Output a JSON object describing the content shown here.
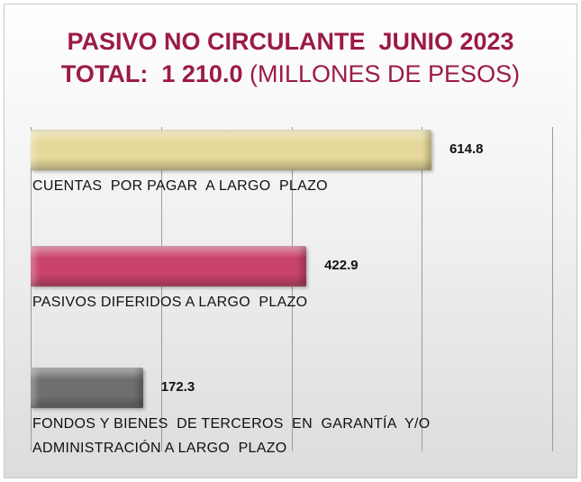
{
  "chart_data": {
    "type": "bar",
    "orientation": "horizontal",
    "title": "PASIVO NO CIRCULANTE  JUNIO 2023",
    "subtitle_bold": "TOTAL:  1 210.0",
    "subtitle": "(MILLONES DE PESOS)",
    "categories": [
      "CUENTAS  POR PAGAR  A LARGO  PLAZO",
      "PASIVOS DIFERIDOS A LARGO  PLAZO",
      "FONDOS Y BIENES  DE TERCEROS  EN  GARANTÍA  Y/O ADMINISTRACIÓN A LARGO  PLAZO"
    ],
    "values": [
      614.8,
      422.9,
      172.3
    ],
    "colors": [
      "#e6d89a",
      "#c9436a",
      "#6e6e6e"
    ],
    "xlim": [
      0,
      800
    ],
    "xticks": [
      0,
      200,
      400,
      600,
      800
    ],
    "grid": true
  }
}
